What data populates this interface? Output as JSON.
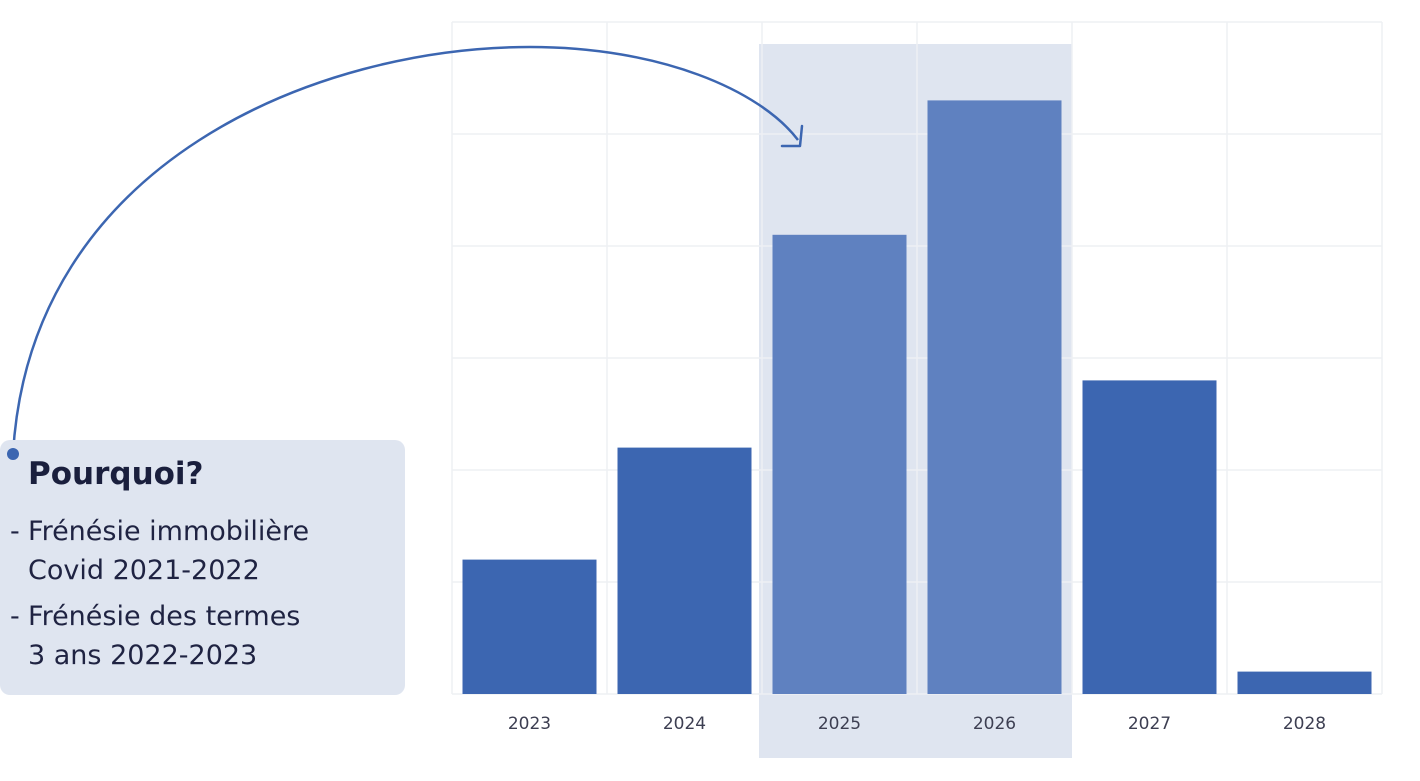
{
  "chart_data": {
    "type": "bar",
    "categories": [
      "2023",
      "2024",
      "2025",
      "2026",
      "2027",
      "2028"
    ],
    "values": [
      12,
      22,
      41,
      53,
      28,
      2
    ],
    "ylim": [
      0,
      60
    ],
    "highlighted_categories": [
      "2025",
      "2026"
    ],
    "grid": true,
    "title": "",
    "xlabel": "",
    "ylabel": ""
  },
  "colors": {
    "bar": "#3c66b1",
    "bar_highlight": "#5f81c0",
    "highlight_band": "#dfe5f0",
    "arrow": "#3c66b1",
    "grid": "#eef0f4",
    "callout_bg": "#dfe5f0",
    "title_text": "#1a1f3d"
  },
  "callout": {
    "title": "Pourquoi?",
    "items": [
      {
        "dash": "-",
        "line1": "Frénésie immobilière",
        "line2": "Covid 2021-2022"
      },
      {
        "dash": "-",
        "line1": "Frénésie des termes",
        "line2": "3 ans 2022-2023"
      }
    ]
  },
  "arrow": {
    "icon": "curved-arrow-icon",
    "from": "callout",
    "to": "2025"
  }
}
